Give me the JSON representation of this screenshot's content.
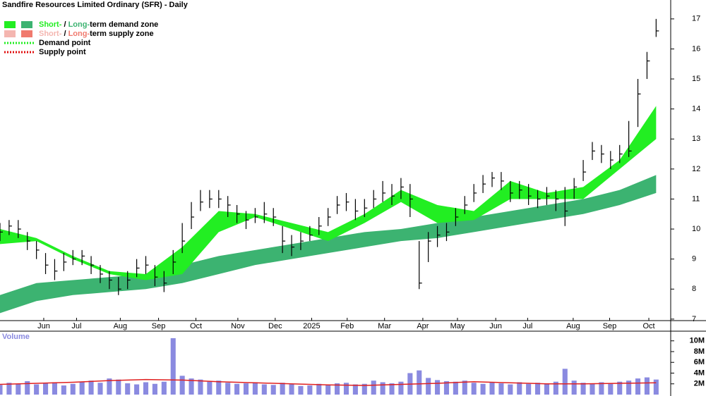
{
  "chart_data": [
    {
      "type": "candlestick",
      "title": "Sandfire Resources Limited Ordinary (SFR) - Daily",
      "legend": [
        {
          "parts": [
            "Short-",
            " / ",
            "Long-",
            "term demand zone"
          ],
          "colors": [
            "#22ee22",
            "#3cb371"
          ]
        },
        {
          "parts": [
            "Short-",
            " / ",
            "Long-",
            "term supply zone"
          ],
          "colors": [
            "#f4b6b0",
            "#f07a6e"
          ]
        },
        {
          "parts": [
            "Demand point"
          ],
          "colors": [
            "#22ee22"
          ]
        },
        {
          "parts": [
            "Supply point"
          ],
          "colors": [
            "#e01010"
          ]
        }
      ],
      "x": [
        0,
        1,
        2,
        3,
        4,
        5,
        6,
        7,
        8,
        9,
        10,
        11,
        12,
        13,
        14,
        15,
        16,
        17,
        18,
        19,
        20,
        21,
        22,
        23,
        24,
        25,
        26,
        27,
        28,
        29,
        30,
        31,
        32,
        33,
        34,
        35,
        36,
        37,
        38,
        39,
        40,
        41,
        42,
        43,
        44,
        45,
        46,
        47,
        48,
        49,
        50,
        51,
        52,
        53,
        54,
        55,
        56,
        57,
        58,
        59,
        60,
        61,
        62,
        63,
        64,
        65,
        66,
        67,
        68,
        69,
        70,
        71,
        72
      ],
      "high": [
        10.2,
        10.3,
        10.3,
        9.9,
        9.6,
        9.2,
        9.0,
        9.2,
        9.3,
        9.3,
        9.1,
        8.8,
        8.6,
        8.4,
        8.6,
        9.0,
        9.1,
        8.8,
        8.6,
        9.3,
        10.2,
        10.9,
        11.3,
        11.3,
        11.3,
        11.1,
        10.8,
        10.6,
        10.7,
        10.9,
        10.7,
        10.1,
        9.8,
        9.9,
        10.1,
        10.4,
        10.7,
        11.1,
        11.2,
        11.0,
        11.0,
        11.3,
        11.6,
        11.5,
        11.7,
        11.5,
        9.6,
        9.9,
        10.1,
        10.2,
        10.7,
        11.1,
        11.5,
        11.8,
        11.9,
        11.9,
        11.6,
        11.6,
        11.5,
        11.3,
        11.4,
        11.3,
        11.4,
        11.7,
        12.3,
        12.9,
        12.8,
        12.6,
        12.8,
        13.6,
        15.0,
        15.9,
        17.0
      ],
      "low": [
        9.6,
        9.8,
        9.7,
        9.3,
        9.0,
        8.5,
        8.3,
        8.6,
        8.8,
        8.8,
        8.5,
        8.2,
        8.0,
        7.8,
        8.0,
        8.4,
        8.5,
        8.1,
        7.9,
        8.5,
        9.2,
        10.0,
        10.6,
        10.7,
        10.7,
        10.4,
        10.2,
        10.0,
        10.2,
        10.2,
        10.1,
        9.2,
        9.1,
        9.3,
        9.6,
        9.8,
        10.1,
        10.5,
        10.6,
        10.3,
        10.4,
        10.7,
        10.9,
        10.8,
        11.0,
        10.4,
        8.0,
        8.9,
        9.4,
        9.6,
        10.1,
        10.5,
        10.9,
        11.2,
        11.4,
        11.3,
        10.9,
        11.0,
        10.8,
        10.7,
        10.8,
        10.6,
        10.1,
        11.0,
        11.6,
        12.3,
        12.2,
        12.0,
        12.2,
        12.4,
        13.4,
        15.0,
        16.4
      ],
      "close": [
        9.9,
        10.1,
        10.0,
        9.6,
        9.3,
        8.8,
        8.6,
        8.9,
        9.0,
        9.1,
        8.8,
        8.5,
        8.3,
        8.0,
        8.3,
        8.7,
        8.8,
        8.4,
        8.2,
        8.9,
        9.6,
        10.4,
        10.9,
        11.0,
        11.0,
        10.8,
        10.5,
        10.3,
        10.4,
        10.5,
        10.4,
        9.6,
        9.4,
        9.6,
        9.8,
        10.1,
        10.4,
        10.8,
        10.9,
        10.6,
        10.7,
        11.0,
        11.2,
        11.1,
        11.4,
        11.0,
        8.2,
        9.6,
        9.8,
        9.9,
        10.4,
        10.8,
        11.2,
        11.5,
        11.7,
        11.6,
        11.2,
        11.3,
        11.1,
        11.0,
        11.1,
        11.0,
        10.6,
        11.4,
        11.9,
        12.6,
        12.5,
        12.3,
        12.5,
        12.6,
        14.5,
        15.6,
        16.6
      ],
      "bands": [
        {
          "color": "#3cb371",
          "x": [
            0,
            4,
            8,
            12,
            16,
            20,
            24,
            28,
            32,
            36,
            40,
            44,
            48,
            52,
            56,
            60,
            64,
            68,
            72
          ],
          "lower": [
            7.2,
            7.6,
            7.8,
            7.9,
            8.0,
            8.2,
            8.5,
            8.8,
            9.0,
            9.2,
            9.4,
            9.6,
            9.7,
            9.9,
            10.1,
            10.3,
            10.5,
            10.8,
            11.2
          ],
          "upper": [
            7.8,
            8.2,
            8.3,
            8.4,
            8.5,
            8.8,
            9.1,
            9.3,
            9.5,
            9.7,
            9.9,
            10.0,
            10.2,
            10.4,
            10.6,
            10.8,
            11.0,
            11.3,
            11.8
          ]
        },
        {
          "color": "#22ee22",
          "x": [
            0,
            4,
            8,
            12,
            16,
            20,
            24,
            28,
            32,
            36,
            40,
            44,
            48,
            52,
            56,
            60,
            64,
            68,
            72
          ],
          "lower": [
            9.5,
            9.6,
            9.0,
            8.5,
            8.3,
            8.5,
            9.9,
            10.4,
            10.0,
            9.6,
            10.2,
            10.9,
            10.2,
            10.3,
            11.0,
            11.0,
            11.0,
            12.0,
            13.0
          ],
          "upper": [
            10.0,
            9.7,
            9.1,
            8.6,
            8.5,
            9.4,
            10.6,
            10.5,
            10.2,
            9.9,
            10.5,
            11.3,
            10.8,
            10.6,
            11.6,
            11.2,
            11.4,
            12.3,
            14.1
          ]
        }
      ],
      "xlim": [
        0,
        73.6
      ],
      "xticks": [
        {
          "value": 4.8,
          "label": "Jun"
        },
        {
          "value": 8.4,
          "label": "Jul"
        },
        {
          "value": 13.2,
          "label": "Aug"
        },
        {
          "value": 17.4,
          "label": "Sep"
        },
        {
          "value": 21.5,
          "label": "Oct"
        },
        {
          "value": 26.1,
          "label": "Nov"
        },
        {
          "value": 30.2,
          "label": "Dec"
        },
        {
          "value": 34.2,
          "label": "2025"
        },
        {
          "value": 38.1,
          "label": "Feb"
        },
        {
          "value": 42.2,
          "label": "Mar"
        },
        {
          "value": 46.4,
          "label": "Apr"
        },
        {
          "value": 50.2,
          "label": "May"
        },
        {
          "value": 54.4,
          "label": "Jun"
        },
        {
          "value": 57.9,
          "label": "Jul"
        },
        {
          "value": 62.9,
          "label": "Aug"
        },
        {
          "value": 66.9,
          "label": "Sep"
        },
        {
          "value": 71.2,
          "label": "Oct"
        }
      ],
      "ylim": [
        6.95,
        17.63
      ],
      "yticks": [
        7,
        8,
        9,
        10,
        11,
        12,
        13,
        14,
        15,
        16,
        17
      ]
    },
    {
      "type": "bar",
      "title": "Volume",
      "color": "#8a8ae0",
      "x": [
        0,
        1,
        2,
        3,
        4,
        5,
        6,
        7,
        8,
        9,
        10,
        11,
        12,
        13,
        14,
        15,
        16,
        17,
        18,
        19,
        20,
        21,
        22,
        23,
        24,
        25,
        26,
        27,
        28,
        29,
        30,
        31,
        32,
        33,
        34,
        35,
        36,
        37,
        38,
        39,
        40,
        41,
        42,
        43,
        44,
        45,
        46,
        47,
        48,
        49,
        50,
        51,
        52,
        53,
        54,
        55,
        56,
        57,
        58,
        59,
        60,
        61,
        62,
        63,
        64,
        65,
        66,
        67,
        68,
        69,
        70,
        71,
        72
      ],
      "values": [
        1.8,
        2.2,
        2.0,
        2.5,
        1.9,
        2.1,
        2.3,
        1.7,
        2.0,
        2.4,
        2.6,
        2.2,
        3.0,
        2.8,
        2.1,
        1.9,
        2.3,
        2.0,
        2.4,
        10.5,
        3.5,
        3.0,
        2.8,
        2.4,
        2.6,
        2.2,
        2.0,
        2.1,
        2.3,
        1.9,
        1.8,
        2.2,
        1.9,
        1.6,
        1.7,
        2.0,
        1.8,
        2.1,
        2.2,
        1.9,
        2.0,
        2.6,
        2.3,
        2.1,
        2.4,
        4.0,
        4.5,
        3.1,
        2.7,
        2.5,
        2.4,
        2.6,
        2.2,
        2.0,
        2.3,
        2.1,
        1.9,
        2.3,
        2.0,
        2.2,
        2.1,
        2.4,
        4.8,
        2.6,
        2.2,
        2.0,
        2.3,
        2.1,
        2.4,
        2.6,
        3.0,
        3.2,
        2.8
      ],
      "average": {
        "color": "#e02020",
        "x": [
          0,
          4,
          8,
          12,
          16,
          20,
          24,
          28,
          32,
          36,
          40,
          44,
          48,
          52,
          56,
          60,
          64,
          68,
          72
        ],
        "values": [
          1.9,
          2.1,
          2.3,
          2.6,
          2.8,
          2.7,
          2.4,
          2.2,
          2.0,
          1.8,
          1.7,
          1.9,
          2.1,
          2.4,
          2.2,
          2.0,
          2.0,
          2.1,
          2.2
        ]
      },
      "xlim": [
        0,
        73.6
      ],
      "ylim": [
        0,
        11.8
      ],
      "yticks": [
        {
          "value": 2,
          "label": "2M"
        },
        {
          "value": 4,
          "label": "4M"
        },
        {
          "value": 6,
          "label": "6M"
        },
        {
          "value": 8,
          "label": "8M"
        },
        {
          "value": 10,
          "label": "10M"
        }
      ]
    }
  ]
}
